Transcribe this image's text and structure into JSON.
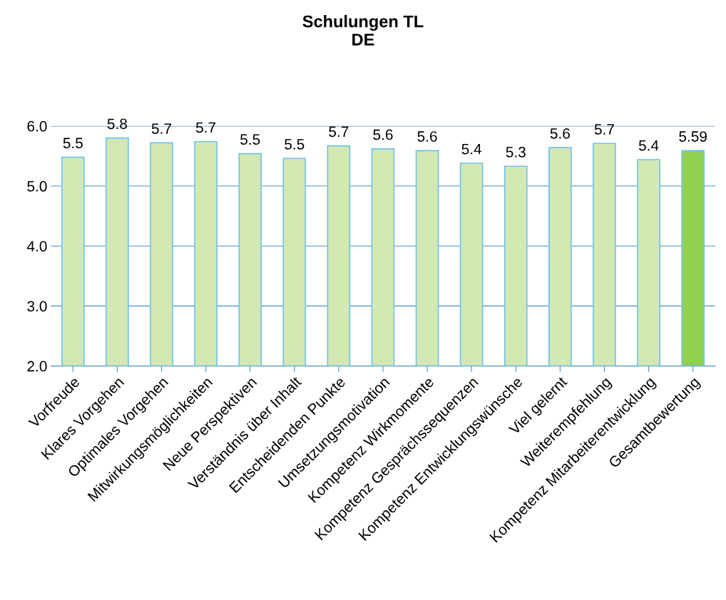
{
  "chart_data": {
    "type": "bar",
    "title": "Schulungen TL\nDE",
    "categories": [
      "Vorfreude",
      "Klares Vorgehen",
      "Optimales Vorgehen",
      "Mitwirkungsmöglichkeiten",
      "Neue Perspektiven",
      "Verständnis über Inhalt",
      "Entscheidenden Punkte",
      "Umsetzungsmotivation",
      "Kompetenz Wirkmomente",
      "Kompetenz Gesprächssequenzen",
      "Kompetenz Entwicklungswünsche",
      "Viel gelernt",
      "Weiterempfehlung",
      "Kompetenz Mitarbeiterentwicklung",
      "Gesamtbewertung"
    ],
    "values": [
      5.48,
      5.8,
      5.72,
      5.74,
      5.54,
      5.46,
      5.67,
      5.62,
      5.59,
      5.38,
      5.33,
      5.64,
      5.71,
      5.44,
      5.59
    ],
    "value_labels": [
      "5.5",
      "5.8",
      "5.7",
      "5.7",
      "5.5",
      "5.5",
      "5.7",
      "5.6",
      "5.6",
      "5.4",
      "5.3",
      "5.6",
      "5.7",
      "5.4",
      "5.59"
    ],
    "colors": [
      "#d4e8b4",
      "#d4e8b4",
      "#d4e8b4",
      "#d4e8b4",
      "#d4e8b4",
      "#d4e8b4",
      "#d4e8b4",
      "#d4e8b4",
      "#d4e8b4",
      "#d4e8b4",
      "#d4e8b4",
      "#d4e8b4",
      "#d4e8b4",
      "#d4e8b4",
      "#92d050"
    ],
    "ylim": [
      2,
      6
    ],
    "yticks": [
      {
        "value": 2,
        "label": "2.0"
      },
      {
        "value": 3,
        "label": "3.0"
      },
      {
        "value": 4,
        "label": "4.0"
      },
      {
        "value": 5,
        "label": "5.0"
      },
      {
        "value": 6,
        "label": "6.0"
      }
    ],
    "grid": "y",
    "legend": false
  }
}
